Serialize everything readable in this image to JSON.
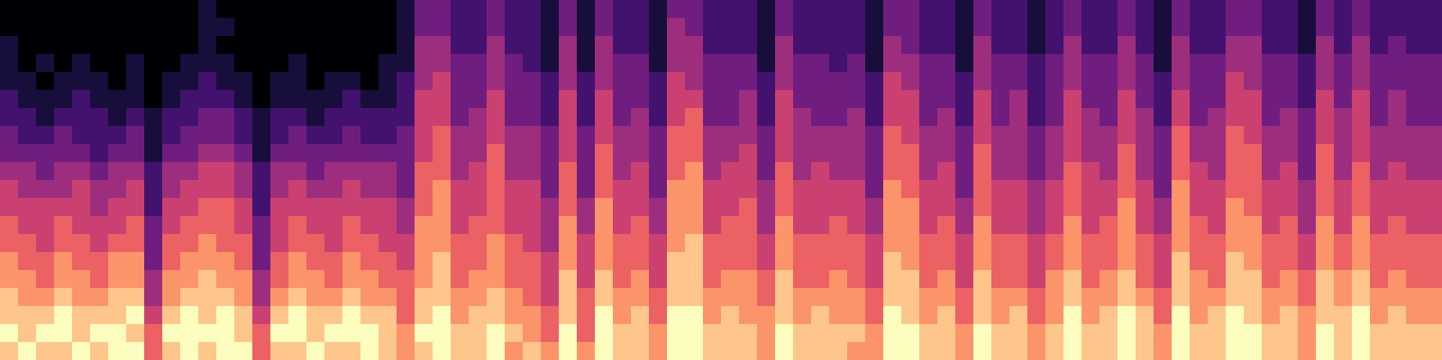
{
  "chart_data": {
    "type": "heatmap",
    "cells": [
      [
        0,
        0,
        0,
        0,
        0,
        0,
        0,
        0,
        0,
        0,
        0,
        1,
        0,
        0,
        0,
        0,
        0,
        0,
        0,
        0,
        0,
        0,
        1,
        3,
        3,
        2,
        2,
        3,
        2,
        2,
        1,
        3,
        1,
        3,
        2,
        2,
        1,
        3,
        3,
        2,
        2,
        2,
        1,
        3,
        2,
        2,
        2,
        2,
        1,
        3,
        3,
        2,
        2,
        1,
        3,
        2,
        2,
        1,
        2,
        3,
        2,
        2,
        3,
        2,
        1,
        3,
        2,
        2,
        3,
        3,
        2,
        2,
        1,
        3,
        2,
        3,
        2,
        2,
        2,
        2
      ],
      [
        0,
        0,
        0,
        0,
        0,
        0,
        0,
        0,
        0,
        0,
        0,
        1,
        1,
        0,
        0,
        0,
        0,
        0,
        0,
        0,
        0,
        0,
        1,
        3,
        3,
        2,
        2,
        3,
        2,
        2,
        1,
        3,
        1,
        3,
        2,
        2,
        1,
        4,
        3,
        2,
        2,
        2,
        1,
        3,
        2,
        2,
        2,
        2,
        1,
        3,
        3,
        2,
        2,
        1,
        3,
        2,
        2,
        1,
        2,
        3,
        2,
        2,
        3,
        2,
        1,
        3,
        2,
        2,
        3,
        3,
        2,
        2,
        1,
        3,
        2,
        3,
        2,
        2,
        2,
        2
      ],
      [
        1,
        0,
        0,
        0,
        0,
        0,
        0,
        0,
        0,
        0,
        0,
        1,
        0,
        0,
        0,
        0,
        0,
        0,
        0,
        0,
        0,
        0,
        1,
        4,
        4,
        2,
        2,
        4,
        2,
        2,
        1,
        4,
        1,
        4,
        2,
        2,
        1,
        4,
        4,
        2,
        2,
        2,
        1,
        4,
        2,
        2,
        2,
        2,
        1,
        4,
        3,
        2,
        2,
        1,
        4,
        2,
        2,
        1,
        2,
        4,
        2,
        2,
        4,
        2,
        1,
        4,
        2,
        2,
        4,
        4,
        2,
        2,
        1,
        4,
        2,
        4,
        2,
        3,
        2,
        2
      ],
      [
        1,
        0,
        1,
        0,
        1,
        0,
        0,
        1,
        0,
        0,
        1,
        1,
        1,
        0,
        0,
        0,
        1,
        0,
        0,
        0,
        0,
        1,
        1,
        4,
        4,
        3,
        3,
        4,
        3,
        2,
        1,
        4,
        1,
        4,
        3,
        3,
        1,
        4,
        4,
        3,
        3,
        3,
        1,
        4,
        3,
        3,
        2,
        3,
        1,
        4,
        4,
        3,
        3,
        1,
        4,
        3,
        3,
        2,
        3,
        4,
        3,
        3,
        4,
        3,
        1,
        4,
        3,
        3,
        4,
        4,
        3,
        3,
        2,
        4,
        3,
        4,
        3,
        3,
        3,
        3
      ],
      [
        1,
        1,
        0,
        1,
        1,
        1,
        0,
        1,
        0,
        1,
        1,
        2,
        1,
        1,
        0,
        1,
        1,
        0,
        1,
        1,
        0,
        1,
        2,
        4,
        5,
        3,
        3,
        4,
        3,
        3,
        2,
        4,
        2,
        4,
        3,
        3,
        2,
        5,
        4,
        3,
        3,
        3,
        2,
        4,
        3,
        3,
        3,
        3,
        2,
        5,
        4,
        3,
        3,
        2,
        4,
        3,
        3,
        2,
        3,
        4,
        3,
        3,
        4,
        3,
        2,
        4,
        3,
        3,
        5,
        4,
        3,
        3,
        2,
        4,
        3,
        4,
        3,
        3,
        3,
        3
      ],
      [
        2,
        1,
        1,
        1,
        2,
        1,
        1,
        1,
        0,
        1,
        2,
        2,
        2,
        1,
        0,
        1,
        1,
        1,
        1,
        2,
        1,
        1,
        2,
        5,
        5,
        3,
        3,
        5,
        3,
        3,
        2,
        5,
        2,
        5,
        3,
        3,
        2,
        5,
        5,
        3,
        3,
        4,
        2,
        5,
        3,
        3,
        3,
        3,
        2,
        5,
        5,
        3,
        3,
        2,
        5,
        3,
        4,
        2,
        3,
        5,
        3,
        3,
        5,
        3,
        2,
        5,
        3,
        3,
        5,
        5,
        3,
        3,
        2,
        5,
        3,
        5,
        3,
        4,
        3,
        3
      ],
      [
        2,
        2,
        1,
        2,
        2,
        2,
        1,
        2,
        1,
        2,
        2,
        3,
        3,
        2,
        1,
        2,
        2,
        1,
        2,
        2,
        2,
        2,
        2,
        5,
        5,
        3,
        4,
        5,
        3,
        3,
        2,
        5,
        2,
        5,
        3,
        4,
        2,
        5,
        6,
        3,
        3,
        4,
        2,
        5,
        4,
        3,
        3,
        4,
        2,
        5,
        5,
        3,
        4,
        2,
        5,
        3,
        4,
        2,
        3,
        5,
        4,
        3,
        5,
        4,
        2,
        5,
        3,
        4,
        5,
        5,
        3,
        4,
        3,
        5,
        4,
        5,
        3,
        4,
        3,
        3
      ],
      [
        3,
        2,
        2,
        3,
        2,
        2,
        2,
        3,
        1,
        2,
        3,
        3,
        3,
        2,
        1,
        2,
        3,
        2,
        2,
        3,
        2,
        2,
        3,
        5,
        6,
        4,
        4,
        5,
        4,
        4,
        3,
        5,
        3,
        5,
        4,
        4,
        3,
        6,
        6,
        4,
        4,
        4,
        3,
        5,
        4,
        4,
        4,
        4,
        3,
        6,
        5,
        4,
        4,
        3,
        5,
        4,
        4,
        3,
        4,
        5,
        4,
        4,
        5,
        4,
        3,
        6,
        4,
        4,
        6,
        5,
        4,
        4,
        3,
        5,
        4,
        5,
        4,
        4,
        4,
        4
      ],
      [
        3,
        3,
        3,
        3,
        3,
        2,
        3,
        3,
        1,
        3,
        3,
        4,
        4,
        3,
        1,
        3,
        3,
        3,
        3,
        3,
        3,
        3,
        3,
        5,
        6,
        4,
        4,
        6,
        4,
        4,
        3,
        5,
        3,
        6,
        4,
        4,
        3,
        6,
        6,
        4,
        4,
        5,
        3,
        5,
        4,
        4,
        4,
        4,
        3,
        6,
        6,
        4,
        4,
        3,
        6,
        4,
        4,
        3,
        4,
        5,
        4,
        4,
        6,
        4,
        3,
        6,
        4,
        4,
        6,
        6,
        4,
        4,
        3,
        6,
        4,
        5,
        4,
        4,
        4,
        4
      ],
      [
        4,
        4,
        3,
        4,
        4,
        3,
        4,
        4,
        2,
        4,
        4,
        5,
        5,
        4,
        2,
        4,
        4,
        3,
        4,
        4,
        4,
        4,
        3,
        6,
        6,
        4,
        5,
        6,
        4,
        4,
        3,
        6,
        3,
        6,
        4,
        5,
        3,
        6,
        7,
        4,
        5,
        5,
        3,
        6,
        4,
        5,
        4,
        4,
        3,
        6,
        6,
        4,
        5,
        3,
        6,
        4,
        4,
        3,
        4,
        6,
        5,
        4,
        6,
        4,
        3,
        6,
        5,
        4,
        6,
        6,
        4,
        5,
        3,
        6,
        4,
        6,
        4,
        5,
        4,
        4
      ],
      [
        5,
        4,
        4,
        4,
        5,
        4,
        4,
        5,
        2,
        4,
        5,
        5,
        5,
        4,
        2,
        4,
        5,
        4,
        4,
        5,
        4,
        4,
        3,
        6,
        7,
        5,
        5,
        6,
        5,
        5,
        3,
        6,
        3,
        6,
        5,
        5,
        3,
        7,
        7,
        5,
        5,
        5,
        4,
        6,
        5,
        5,
        5,
        5,
        3,
        7,
        6,
        5,
        5,
        3,
        6,
        5,
        5,
        4,
        5,
        6,
        5,
        5,
        6,
        5,
        3,
        7,
        5,
        5,
        6,
        6,
        5,
        5,
        4,
        6,
        5,
        6,
        5,
        5,
        5,
        5
      ],
      [
        5,
        5,
        5,
        5,
        5,
        4,
        5,
        5,
        2,
        5,
        5,
        6,
        6,
        5,
        2,
        5,
        5,
        5,
        5,
        5,
        5,
        5,
        4,
        6,
        7,
        5,
        5,
        6,
        5,
        5,
        4,
        6,
        4,
        7,
        5,
        5,
        4,
        7,
        7,
        5,
        5,
        6,
        4,
        6,
        5,
        5,
        5,
        5,
        4,
        7,
        7,
        5,
        5,
        4,
        6,
        5,
        5,
        4,
        5,
        6,
        5,
        5,
        7,
        5,
        4,
        7,
        5,
        5,
        7,
        6,
        5,
        5,
        4,
        6,
        5,
        6,
        5,
        5,
        5,
        5
      ],
      [
        6,
        5,
        5,
        6,
        5,
        5,
        5,
        6,
        3,
        5,
        6,
        6,
        6,
        5,
        3,
        5,
        6,
        5,
        5,
        6,
        5,
        5,
        4,
        7,
        7,
        5,
        6,
        6,
        5,
        5,
        4,
        7,
        4,
        7,
        5,
        6,
        4,
        7,
        7,
        5,
        6,
        6,
        4,
        7,
        5,
        5,
        6,
        5,
        4,
        7,
        7,
        5,
        6,
        4,
        7,
        5,
        5,
        4,
        5,
        7,
        5,
        6,
        7,
        5,
        4,
        7,
        6,
        5,
        7,
        7,
        5,
        6,
        4,
        7,
        5,
        7,
        5,
        6,
        5,
        5
      ],
      [
        6,
        6,
        5,
        6,
        6,
        5,
        6,
        6,
        3,
        6,
        6,
        7,
        6,
        6,
        3,
        5,
        6,
        6,
        5,
        6,
        6,
        5,
        5,
        7,
        7,
        6,
        6,
        7,
        6,
        5,
        4,
        7,
        5,
        7,
        6,
        6,
        5,
        7,
        8,
        6,
        6,
        6,
        5,
        7,
        6,
        6,
        6,
        6,
        5,
        7,
        7,
        6,
        6,
        5,
        7,
        6,
        6,
        5,
        6,
        7,
        6,
        6,
        7,
        6,
        5,
        7,
        6,
        6,
        7,
        7,
        6,
        6,
        5,
        7,
        6,
        7,
        6,
        6,
        6,
        6
      ],
      [
        7,
        6,
        6,
        7,
        6,
        6,
        7,
        7,
        3,
        6,
        7,
        7,
        7,
        6,
        3,
        6,
        7,
        6,
        6,
        7,
        6,
        6,
        5,
        7,
        8,
        6,
        6,
        7,
        6,
        6,
        5,
        7,
        5,
        7,
        6,
        6,
        5,
        8,
        8,
        6,
        6,
        6,
        5,
        7,
        6,
        6,
        6,
        6,
        5,
        8,
        7,
        6,
        6,
        5,
        7,
        6,
        6,
        5,
        6,
        7,
        6,
        6,
        7,
        6,
        5,
        8,
        6,
        6,
        8,
        7,
        6,
        6,
        5,
        7,
        6,
        7,
        6,
        6,
        6,
        6
      ],
      [
        7,
        7,
        6,
        7,
        7,
        6,
        7,
        7,
        4,
        7,
        7,
        8,
        7,
        7,
        4,
        6,
        7,
        7,
        6,
        7,
        7,
        6,
        6,
        7,
        8,
        6,
        7,
        7,
        6,
        6,
        5,
        8,
        5,
        8,
        6,
        7,
        5,
        8,
        8,
        6,
        7,
        7,
        6,
        8,
        6,
        6,
        7,
        6,
        5,
        8,
        8,
        6,
        7,
        5,
        8,
        6,
        6,
        5,
        7,
        8,
        6,
        7,
        8,
        6,
        5,
        8,
        7,
        6,
        8,
        8,
        6,
        7,
        6,
        8,
        7,
        8,
        6,
        7,
        6,
        6
      ],
      [
        8,
        7,
        7,
        8,
        7,
        7,
        8,
        8,
        4,
        7,
        8,
        8,
        8,
        7,
        4,
        7,
        8,
        7,
        7,
        8,
        7,
        7,
        6,
        8,
        8,
        7,
        7,
        8,
        7,
        6,
        5,
        8,
        6,
        8,
        7,
        7,
        6,
        8,
        8,
        7,
        7,
        7,
        6,
        8,
        7,
        7,
        7,
        7,
        6,
        8,
        8,
        7,
        7,
        6,
        8,
        7,
        7,
        6,
        7,
        8,
        7,
        7,
        8,
        7,
        6,
        8,
        7,
        7,
        8,
        8,
        7,
        7,
        6,
        8,
        7,
        8,
        7,
        7,
        7,
        7
      ],
      [
        8,
        8,
        8,
        9,
        8,
        8,
        8,
        9,
        5,
        8,
        9,
        8,
        9,
        8,
        5,
        8,
        9,
        8,
        8,
        9,
        8,
        8,
        6,
        8,
        9,
        7,
        8,
        8,
        7,
        7,
        6,
        8,
        6,
        9,
        7,
        8,
        6,
        9,
        9,
        7,
        8,
        7,
        7,
        8,
        7,
        8,
        7,
        7,
        6,
        9,
        8,
        7,
        8,
        6,
        8,
        7,
        8,
        6,
        7,
        9,
        7,
        8,
        9,
        8,
        6,
        9,
        7,
        8,
        9,
        8,
        7,
        8,
        7,
        8,
        8,
        9,
        7,
        8,
        7,
        7
      ],
      [
        9,
        8,
        9,
        9,
        8,
        9,
        9,
        8,
        6,
        9,
        9,
        9,
        9,
        8,
        6,
        9,
        9,
        8,
        9,
        9,
        9,
        8,
        7,
        9,
        9,
        8,
        8,
        9,
        8,
        7,
        6,
        9,
        6,
        9,
        8,
        8,
        7,
        9,
        9,
        8,
        8,
        8,
        7,
        9,
        8,
        8,
        8,
        8,
        7,
        9,
        9,
        8,
        8,
        7,
        9,
        8,
        8,
        7,
        8,
        9,
        8,
        8,
        9,
        8,
        7,
        9,
        8,
        8,
        9,
        9,
        8,
        8,
        7,
        9,
        8,
        9,
        8,
        8,
        8,
        8
      ],
      [
        8,
        9,
        8,
        8,
        9,
        8,
        9,
        9,
        6,
        8,
        9,
        8,
        9,
        9,
        6,
        8,
        8,
        9,
        8,
        8,
        9,
        8,
        7,
        8,
        9,
        8,
        8,
        9,
        7,
        8,
        7,
        9,
        7,
        9,
        8,
        8,
        7,
        9,
        9,
        8,
        8,
        8,
        7,
        9,
        8,
        8,
        8,
        7,
        7,
        9,
        9,
        8,
        8,
        7,
        9,
        8,
        8,
        7,
        8,
        9,
        8,
        8,
        9,
        8,
        7,
        9,
        8,
        8,
        9,
        9,
        8,
        8,
        7,
        9,
        8,
        9,
        8,
        8,
        8,
        8
      ]
    ]
  }
}
